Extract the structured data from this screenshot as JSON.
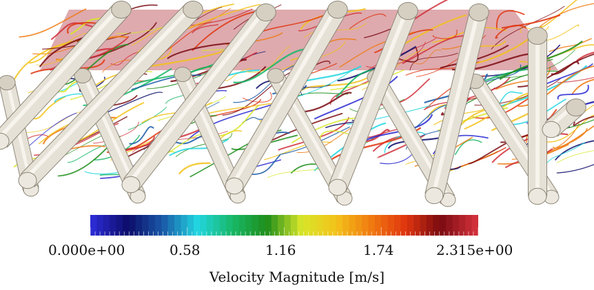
{
  "colorbar": {
    "title": "Velocity Magnitude [m/s]",
    "tick_labels": [
      "0.000e+00",
      "0.58",
      "1.16",
      "1.74",
      "2.315e+00"
    ],
    "range": [
      0.0,
      2.315
    ],
    "colormap_stops": [
      "#2b2bd1",
      "#0c0c6a",
      "#1a5aa8",
      "#22d6e0",
      "#18b868",
      "#1f8e1a",
      "#d8e62a",
      "#f3c21a",
      "#f07a10",
      "#e0360f",
      "#7a0a10",
      "#d0303a"
    ]
  },
  "scene": {
    "background": "#ffffff",
    "slice_plane_color": "#b6424c",
    "tube_color": "#e6e1d6"
  }
}
